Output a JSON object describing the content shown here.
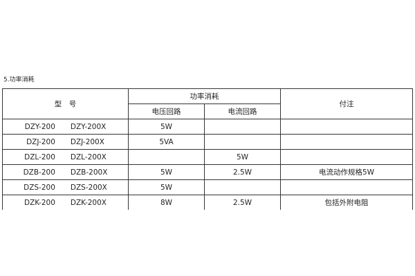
{
  "section_title": "5.功率消耗",
  "table": {
    "headers": {
      "model": "型　号",
      "power": "功率消耗",
      "voltage_circuit": "电压回路",
      "current_circuit": "电流回路",
      "note": "付注"
    },
    "rows": [
      {
        "model_a": "DZY-200",
        "model_b": "DZY-200X",
        "voltage": "5W",
        "current": "",
        "note": ""
      },
      {
        "model_a": "DZJ-200",
        "model_b": "DZJ-200X",
        "voltage": "5VA",
        "current": "",
        "note": ""
      },
      {
        "model_a": "DZL-200",
        "model_b": "DZL-200X",
        "voltage": "",
        "current": "5W",
        "note": ""
      },
      {
        "model_a": "DZB-200",
        "model_b": "DZB-200X",
        "voltage": "5W",
        "current": "2.5W",
        "note": "电流动作规格5W"
      },
      {
        "model_a": "DZS-200",
        "model_b": "DZS-200X",
        "voltage": "5W",
        "current": "",
        "note": ""
      },
      {
        "model_a": "DZK-200",
        "model_b": "DZK-200X",
        "voltage": "8W",
        "current": "2.5W",
        "note": "包括外附电阻"
      }
    ]
  }
}
